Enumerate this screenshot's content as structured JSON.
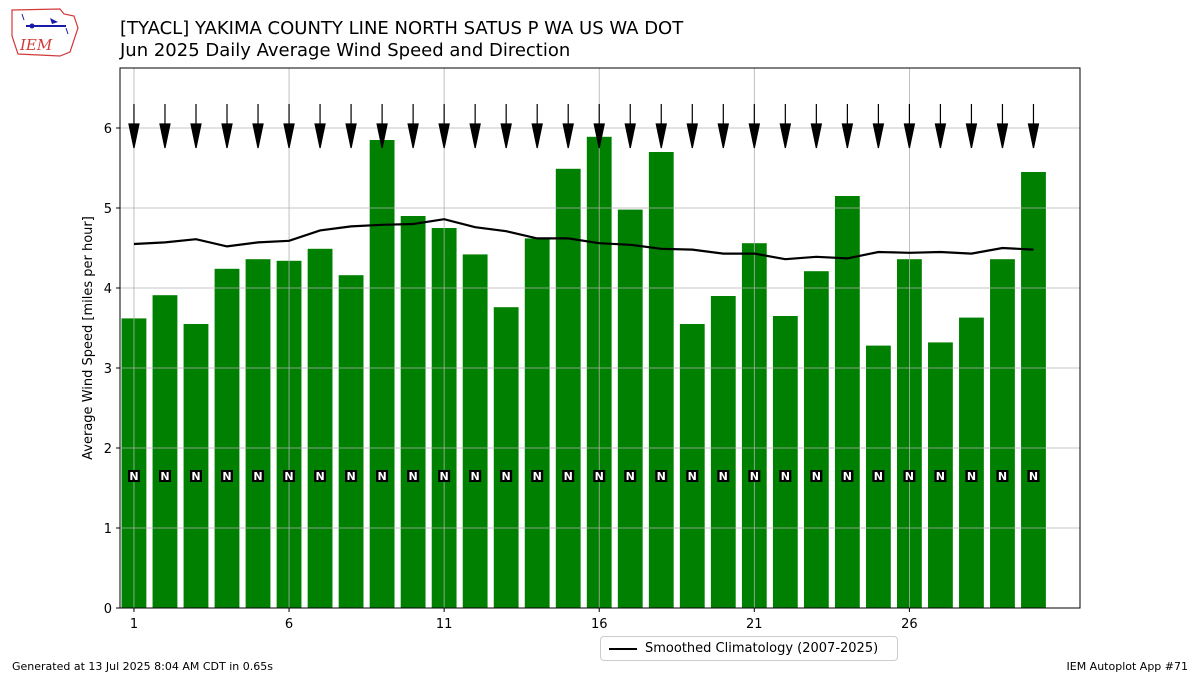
{
  "header": {
    "title_line1": "[TYACL] YAKIMA COUNTY LINE NORTH SATUS P WA US WA DOT",
    "title_line2": "Jun 2025 Daily Average Wind Speed and Direction"
  },
  "logo": {
    "text": "IEM",
    "icon": "iowa-state-logo"
  },
  "footer": {
    "generated": "Generated at 13 Jul 2025 8:04 AM CDT in 0.65s",
    "app": "IEM Autoplot App #71"
  },
  "colors": {
    "bars": "#008000",
    "climatology": "#000000",
    "grid": "#b0b0b0"
  },
  "chart_data": {
    "type": "bar",
    "ylabel": "Average Wind Speed [miles per hour]",
    "xlabel": "",
    "ylim": [
      0,
      6.75
    ],
    "yticks": [
      0,
      1,
      2,
      3,
      4,
      5,
      6
    ],
    "xticks": [
      1,
      6,
      11,
      16,
      21,
      26
    ],
    "grid": true,
    "legend_position": "bottom-center",
    "days": [
      1,
      2,
      3,
      4,
      5,
      6,
      7,
      8,
      9,
      10,
      11,
      12,
      13,
      14,
      15,
      16,
      17,
      18,
      19,
      20,
      21,
      22,
      23,
      24,
      25,
      26,
      27,
      28,
      29,
      30
    ],
    "series": [
      {
        "name": "Average Wind Speed",
        "type": "bar",
        "values": [
          3.62,
          3.91,
          3.55,
          4.24,
          4.36,
          4.34,
          4.49,
          4.16,
          5.85,
          4.9,
          4.75,
          4.42,
          3.76,
          4.62,
          5.49,
          5.89,
          4.98,
          5.7,
          3.55,
          3.9,
          4.56,
          3.65,
          4.21,
          5.15,
          3.28,
          4.36,
          3.32,
          3.63,
          4.36,
          5.45
        ]
      },
      {
        "name": "Smoothed Climatology (2007-2025)",
        "type": "line",
        "values": [
          4.55,
          4.57,
          4.61,
          4.52,
          4.57,
          4.59,
          4.72,
          4.77,
          4.79,
          4.8,
          4.86,
          4.76,
          4.71,
          4.62,
          4.62,
          4.56,
          4.54,
          4.49,
          4.48,
          4.43,
          4.43,
          4.36,
          4.39,
          4.37,
          4.45,
          4.44,
          4.45,
          4.43,
          4.5,
          4.48
        ]
      }
    ],
    "direction_labels": [
      "N",
      "N",
      "N",
      "N",
      "N",
      "N",
      "N",
      "N",
      "N",
      "N",
      "N",
      "N",
      "N",
      "N",
      "N",
      "N",
      "N",
      "N",
      "N",
      "N",
      "N",
      "N",
      "N",
      "N",
      "N",
      "N",
      "N",
      "N",
      "N",
      "N"
    ],
    "direction_arrow_icon": "north-wind-arrow-icon"
  }
}
